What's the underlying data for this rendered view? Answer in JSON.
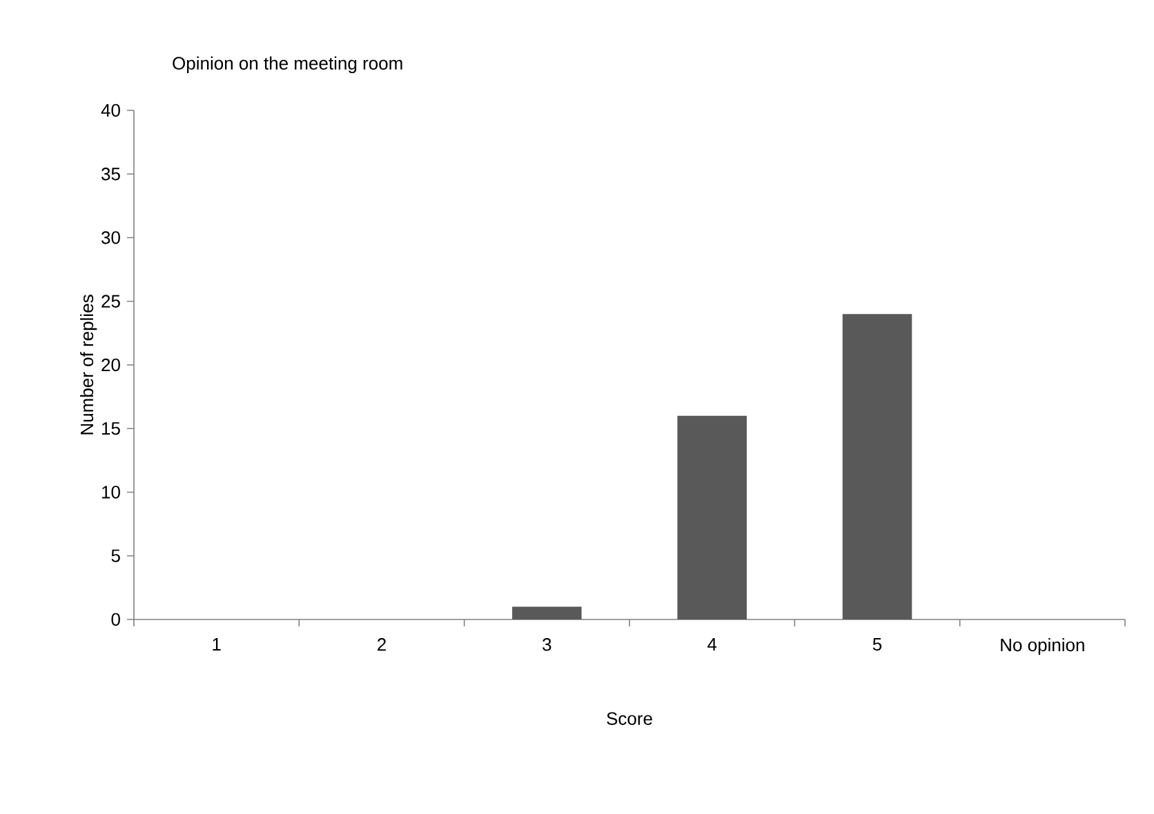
{
  "chart_data": {
    "type": "bar",
    "title": "Opinion on the meeting room",
    "xlabel": "Score",
    "ylabel": "Number of replies",
    "categories": [
      "1",
      "2",
      "3",
      "4",
      "5",
      "No opinion"
    ],
    "values": [
      0,
      0,
      1,
      16,
      24,
      0
    ],
    "color": "#595959",
    "ylim": [
      0,
      40
    ],
    "yticks": [
      0,
      5,
      10,
      15,
      20,
      25,
      30,
      35,
      40
    ]
  }
}
